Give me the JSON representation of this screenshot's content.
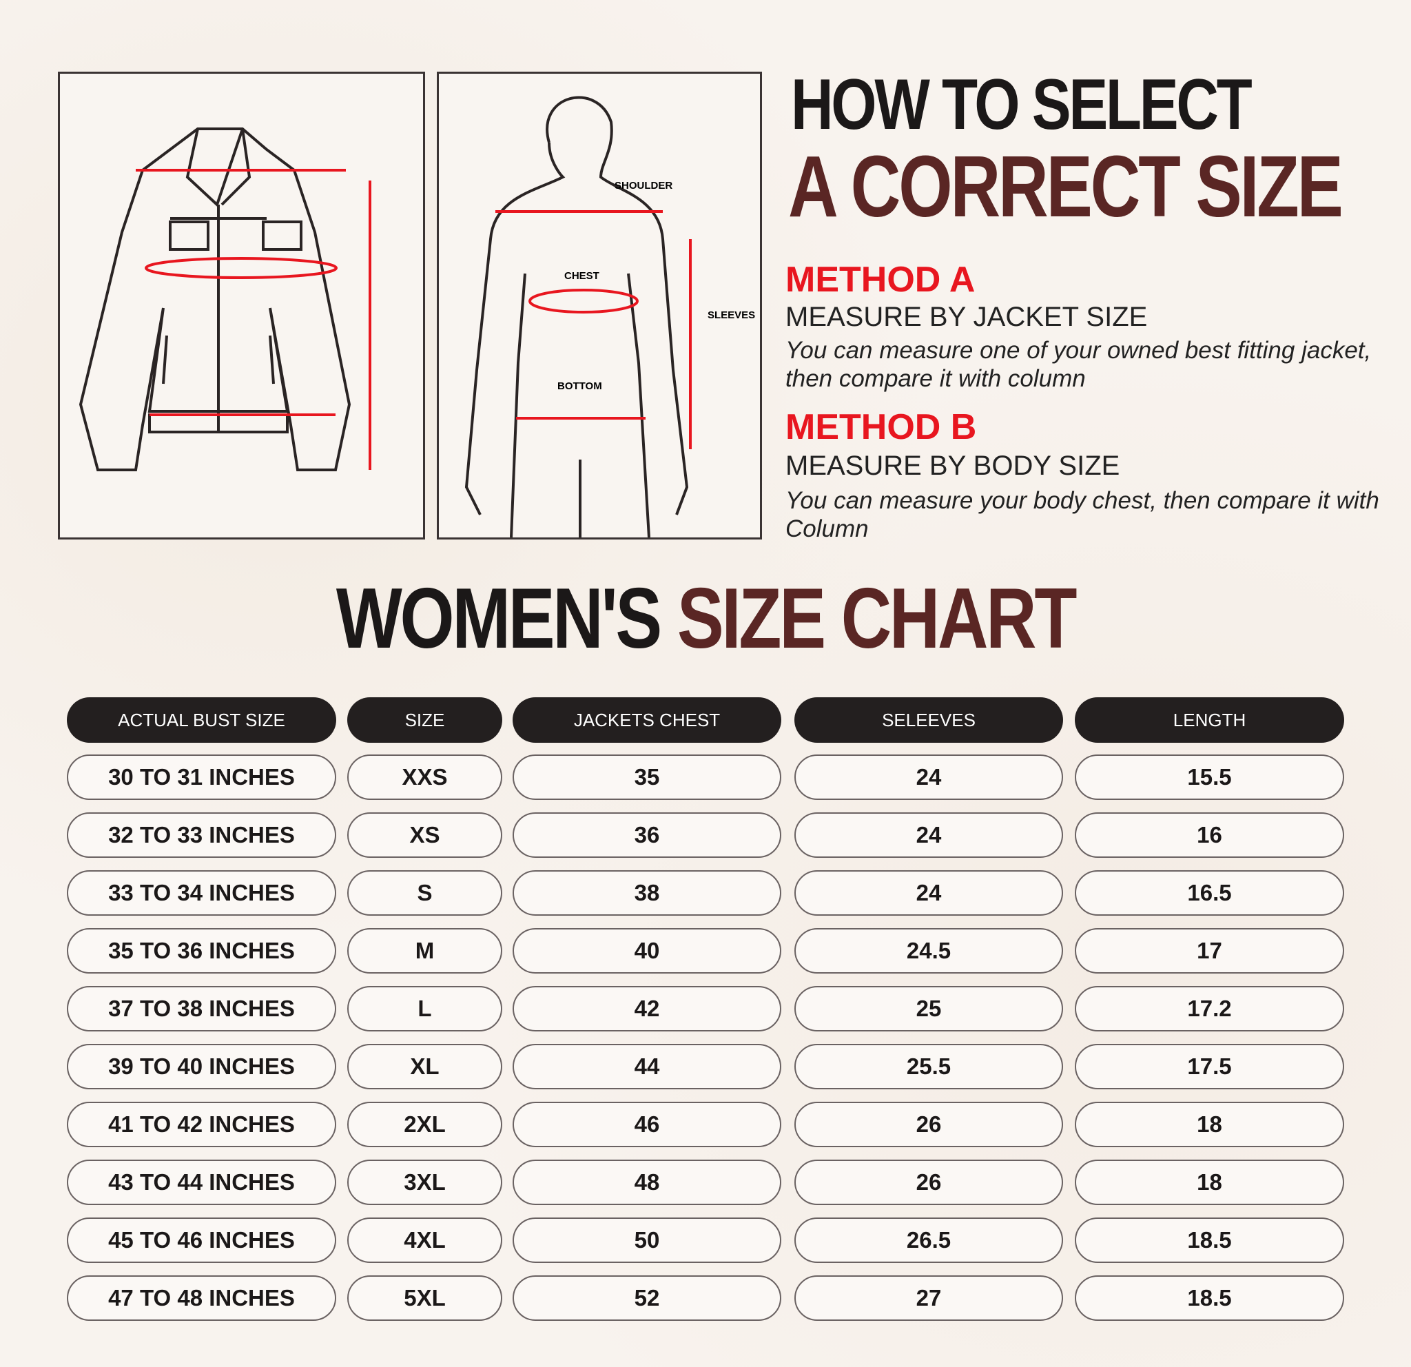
{
  "diagram_labels": {
    "shoulder": "SHOULDER",
    "chest": "CHEST",
    "sleeves": "SLEEVES",
    "bottom": "BOTTOM"
  },
  "header": {
    "line1": "HOW TO SELECT",
    "line2": "A CORRECT SIZE"
  },
  "method_a": {
    "title": "METHOD A",
    "subtitle": "MEASURE BY JACKET SIZE",
    "description": "You can measure one of your owned best fitting jacket, then compare it with column"
  },
  "method_b": {
    "title": "METHOD B",
    "subtitle": "MEASURE BY BODY SIZE",
    "description": "You can measure your body chest, then compare it with Column"
  },
  "chart_title": {
    "part1": "WOMEN'S",
    "part2": "SIZE CHART"
  },
  "colors": {
    "accent_red": "#e8161f",
    "brand_brown": "#5a2624",
    "header_bg": "#231f1f"
  },
  "table": {
    "columns": [
      "ACTUAL BUST SIZE",
      "SIZE",
      "JACKETS CHEST",
      "SELEEVES",
      "LENGTH"
    ],
    "rows": [
      [
        "30 TO 31 INCHES",
        "XXS",
        "35",
        "24",
        "15.5"
      ],
      [
        "32 TO 33 INCHES",
        "XS",
        "36",
        "24",
        "16"
      ],
      [
        "33 TO 34 INCHES",
        "S",
        "38",
        "24",
        "16.5"
      ],
      [
        "35 TO 36 INCHES",
        "M",
        "40",
        "24.5",
        "17"
      ],
      [
        "37 TO 38 INCHES",
        "L",
        "42",
        "25",
        "17.2"
      ],
      [
        "39 TO 40 INCHES",
        "XL",
        "44",
        "25.5",
        "17.5"
      ],
      [
        "41 TO 42 INCHES",
        "2XL",
        "46",
        "26",
        "18"
      ],
      [
        "43 TO 44 INCHES",
        "3XL",
        "48",
        "26",
        "18"
      ],
      [
        "45 TO 46 INCHES",
        "4XL",
        "50",
        "26.5",
        "18.5"
      ],
      [
        "47 TO 48 INCHES",
        "5XL",
        "52",
        "27",
        "18.5"
      ]
    ]
  }
}
